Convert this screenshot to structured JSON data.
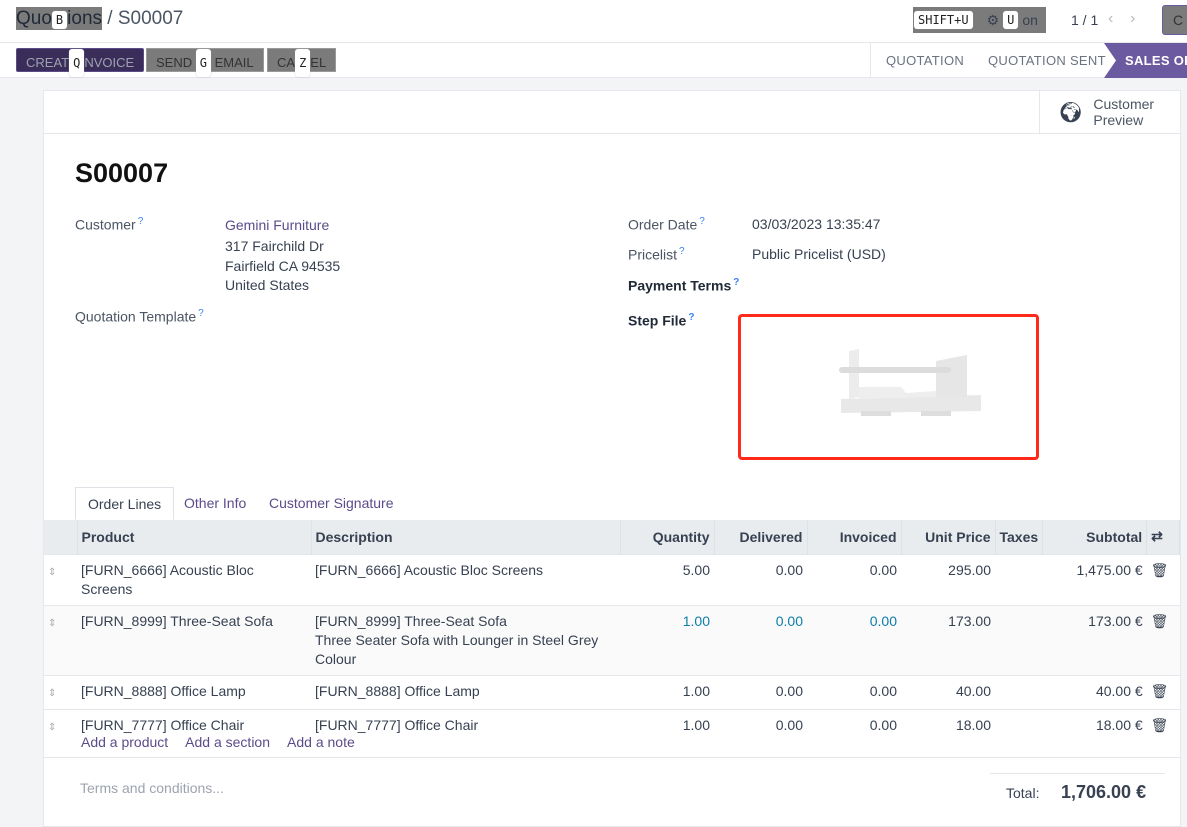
{
  "breadcrumb": {
    "parent": "Quotations",
    "parent_hint": "B",
    "current": "S00007"
  },
  "topbar": {
    "shift_hint": "SHIFT+U",
    "action_label": "Action",
    "action_hint": "U",
    "pager": "1 / 1",
    "create_label": "C"
  },
  "buttons": {
    "create_invoice": "CREATE INVOICE",
    "create_invoice_hint": "Q",
    "send_email": "SEND BY EMAIL",
    "send_email_hint": "G",
    "cancel": "CANCEL",
    "cancel_hint": "Z"
  },
  "stages": [
    "QUOTATION",
    "QUOTATION SENT",
    "SALES ORDER"
  ],
  "customer_preview": "Customer Preview",
  "title": "S00007",
  "fields": {
    "customer_label": "Customer",
    "customer_name": "Gemini Furniture",
    "address1": "317 Fairchild Dr",
    "address2": "Fairfield CA 94535",
    "address3": "United States",
    "template_label": "Quotation Template",
    "order_date_label": "Order Date",
    "order_date": "03/03/2023 13:35:47",
    "pricelist_label": "Pricelist",
    "pricelist": "Public Pricelist (USD)",
    "payment_terms_label": "Payment Terms",
    "step_file_label": "Step File"
  },
  "tabs": [
    "Order Lines",
    "Other Info",
    "Customer Signature"
  ],
  "columns": [
    "Product",
    "Description",
    "Quantity",
    "Delivered",
    "Invoiced",
    "Unit Price",
    "Taxes",
    "Subtotal"
  ],
  "rows": [
    {
      "product": "[FURN_6666] Acoustic Bloc Screens",
      "desc": "[FURN_6666] Acoustic Bloc Screens",
      "desc2": "",
      "qty": "5.00",
      "delivered": "0.00",
      "invoiced": "0.00",
      "price": "295.00",
      "taxes": "",
      "subtotal": "1,475.00 €"
    },
    {
      "product": "[FURN_8999] Three-Seat Sofa",
      "desc": "[FURN_8999] Three-Seat Sofa",
      "desc2": "Three Seater Sofa with Lounger in Steel Grey Colour",
      "qty": "1.00",
      "delivered": "0.00",
      "invoiced": "0.00",
      "price": "173.00",
      "taxes": "",
      "subtotal": "173.00 €"
    },
    {
      "product": "[FURN_8888] Office Lamp",
      "desc": "[FURN_8888] Office Lamp",
      "desc2": "",
      "qty": "1.00",
      "delivered": "0.00",
      "invoiced": "0.00",
      "price": "40.00",
      "taxes": "",
      "subtotal": "40.00 €"
    },
    {
      "product": "[FURN_7777] Office Chair",
      "desc": "[FURN_7777] Office Chair",
      "desc2": "",
      "qty": "1.00",
      "delivered": "0.00",
      "invoiced": "0.00",
      "price": "18.00",
      "taxes": "",
      "subtotal": "18.00 €"
    }
  ],
  "add_links": [
    "Add a product",
    "Add a section",
    "Add a note"
  ],
  "terms_placeholder": "Terms and conditions...",
  "total_label": "Total:",
  "total": "1,706.00 €",
  "colors": {
    "primary": "#3b2d5a",
    "stage_active": "#6c5aa0",
    "highlight": "#0d7ea8",
    "step_border": "#ff2a1a"
  }
}
